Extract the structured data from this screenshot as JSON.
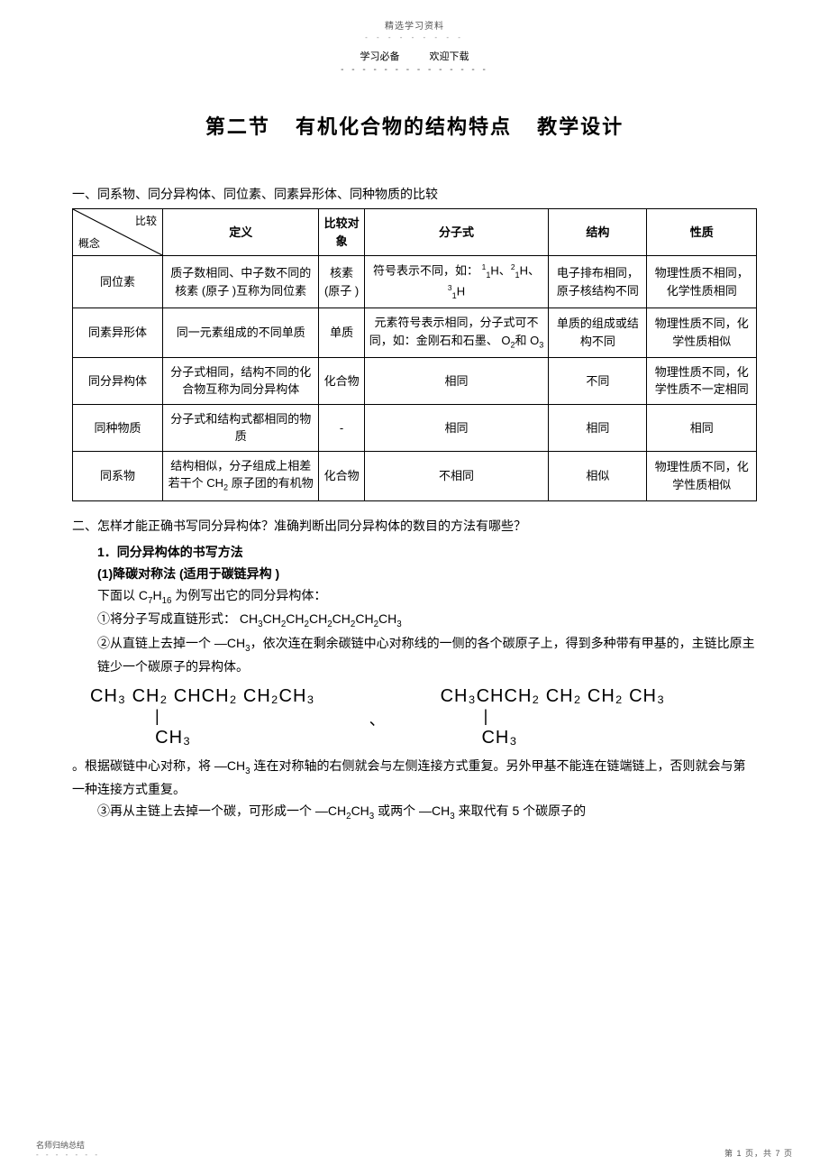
{
  "header": {
    "top_label": "精选学习资料",
    "dots": "- - - - - - - - -",
    "left": "学习必备",
    "right": "欢迎下载",
    "dash": "- - - - - - - - - - - - - -"
  },
  "title": {
    "part1": "第二节",
    "part2": "有机化合物的结构特点",
    "part3": "教学设计"
  },
  "section1_heading": "一、同系物、同分异构体、同位素、同素异形体、同种物质的比较",
  "table": {
    "head_diag_top": "比较",
    "head_diag_bottom": "概念",
    "columns": [
      "定义",
      "比较对象",
      "分子式",
      "结构",
      "性质"
    ],
    "rows": [
      {
        "name": "同位素",
        "def": "质子数相同、中子数不同的核素 (原子 )互称为同位素",
        "obj": "核素 (原子 )",
        "formula_html": "符号表示不同，如： <sup>1</sup><sub>1</sub>H、<sup>2</sup><sub>1</sub>H、<sup>3</sup><sub>1</sub>H",
        "struct": "电子排布相同，原子核结构不同",
        "prop": "物理性质不相同，化学性质相同"
      },
      {
        "name": "同素异形体",
        "def": "同一元素组成的不同单质",
        "obj": "单质",
        "formula_html": "元素符号表示相同，分子式可不同，如：金刚石和石墨、 O<sub>2</sub>和 O<sub>3</sub>",
        "struct": "单质的组成或结构不同",
        "prop": "物理性质不同，化学性质相似"
      },
      {
        "name": "同分异构体",
        "def": "分子式相同，结构不同的化合物互称为同分异构体",
        "obj": "化合物",
        "formula_html": "相同",
        "struct": "不同",
        "prop": "物理性质不同，化学性质不一定相同"
      },
      {
        "name": "同种物质",
        "def": "分子式和结构式都相同的物质",
        "obj": "-",
        "formula_html": "相同",
        "struct": "相同",
        "prop": "相同"
      },
      {
        "name": "同系物",
        "def_html": "结构相似，分子组成上相差若干个 CH<sub>2</sub> 原子团的有机物",
        "obj": "化合物",
        "formula_html": "不相同",
        "struct": "相似",
        "prop": "物理性质不同，化学性质相似"
      }
    ]
  },
  "section2_heading": "二、怎样才能正确书写同分异构体？准确判断出同分异构体的数目的方法有哪些？",
  "body": {
    "l1": "1．同分异构体的书写方法",
    "l2": "(1)降碳对称法  (适用于碳链异构   )",
    "l3_html": "下面以   C<sub>7</sub>H<sub>16</sub> 为例写出它的同分异构体：",
    "l4_html": "①将分子写成直链形式：     CH<sub>3</sub>CH<sub>2</sub>CH<sub>2</sub>CH<sub>2</sub>CH<sub>2</sub>CH<sub>2</sub>CH<sub>3</sub>",
    "l5_html": "②从直链上去掉一个    —CH<sub>3</sub>，依次连在剩余碳链中心对称线的一侧的各个碳原子上，得到多种带有甲基的，主链比原主链少一个碳原子的异构体。",
    "mol1_top": "CH₃ CH₂ CHCH₂ CH₂CH₃",
    "mol1_bar": "            |",
    "mol1_bot": "           CH₃",
    "comma": "、",
    "mol2_top": "CH₃CHCH₂ CH₂ CH₂ CH₃",
    "mol2_bar": "        |",
    "mol2_bot": "       CH₃",
    "l6_html": "。根据碳链中心对称，将    —CH<sub>3</sub> 连在对称轴的右侧就会与左侧连接方式重复。另外甲基不能连在链端链上，否则就会与第一种连接方式重复。",
    "l7_html": "③再从主链上去掉一个碳，可形成一个       —CH<sub>2</sub>CH<sub>3</sub> 或两个  —CH<sub>3</sub> 来取代有   5 个碳原子的"
  },
  "footer": {
    "left_text": "名师归纳总结",
    "left_dots": "- - - - - - -",
    "right_text": "第 1 页，共 7 页"
  }
}
